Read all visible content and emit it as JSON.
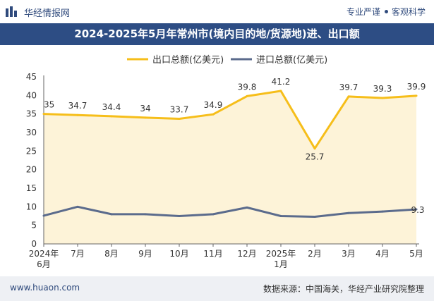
{
  "header": {
    "brand": "华经情报网",
    "tagline_left": "专业严谨",
    "tagline_right": "客观科学",
    "logo_icon": "bar-logo-icon"
  },
  "chart_data": {
    "type": "line",
    "title": "2024-2025年5月年常州市(境内目的地/货源地)进、出口额",
    "categories": [
      [
        "2024年",
        "6月"
      ],
      [
        "7月"
      ],
      [
        "8月"
      ],
      [
        "9月"
      ],
      [
        "10月"
      ],
      [
        "11月"
      ],
      [
        "12月"
      ],
      [
        "2025年",
        "1月"
      ],
      [
        "2月"
      ],
      [
        "3月"
      ],
      [
        "4月"
      ],
      [
        "5月"
      ]
    ],
    "series": [
      {
        "name": "出口总额(亿美元)",
        "color": "#f6be1a",
        "fill": "#fdf3d8",
        "values": [
          35,
          34.7,
          34.4,
          34,
          33.7,
          34.9,
          39.8,
          41.2,
          25.7,
          39.7,
          39.3,
          39.9
        ],
        "labels": [
          "35",
          "34.7",
          "34.4",
          "34",
          "33.7",
          "34.9",
          "39.8",
          "41.2",
          "25.7",
          "39.7",
          "39.3",
          "39.9"
        ]
      },
      {
        "name": "进口总额(亿美元)",
        "color": "#5b6b8c",
        "values": [
          7.6,
          10,
          8,
          8,
          7.5,
          8,
          9.8,
          7.5,
          7.3,
          8.3,
          8.7,
          9.3
        ],
        "last_label": "9.3"
      }
    ],
    "ylim": [
      0,
      45
    ],
    "yticks": [
      0,
      5,
      10,
      15,
      20,
      25,
      30,
      35,
      40,
      45
    ],
    "grid": false,
    "legend": "top-center"
  },
  "footer": {
    "website": "www.huaon.com",
    "source": "数据来源：中国海关，华经产业研究院整理"
  }
}
